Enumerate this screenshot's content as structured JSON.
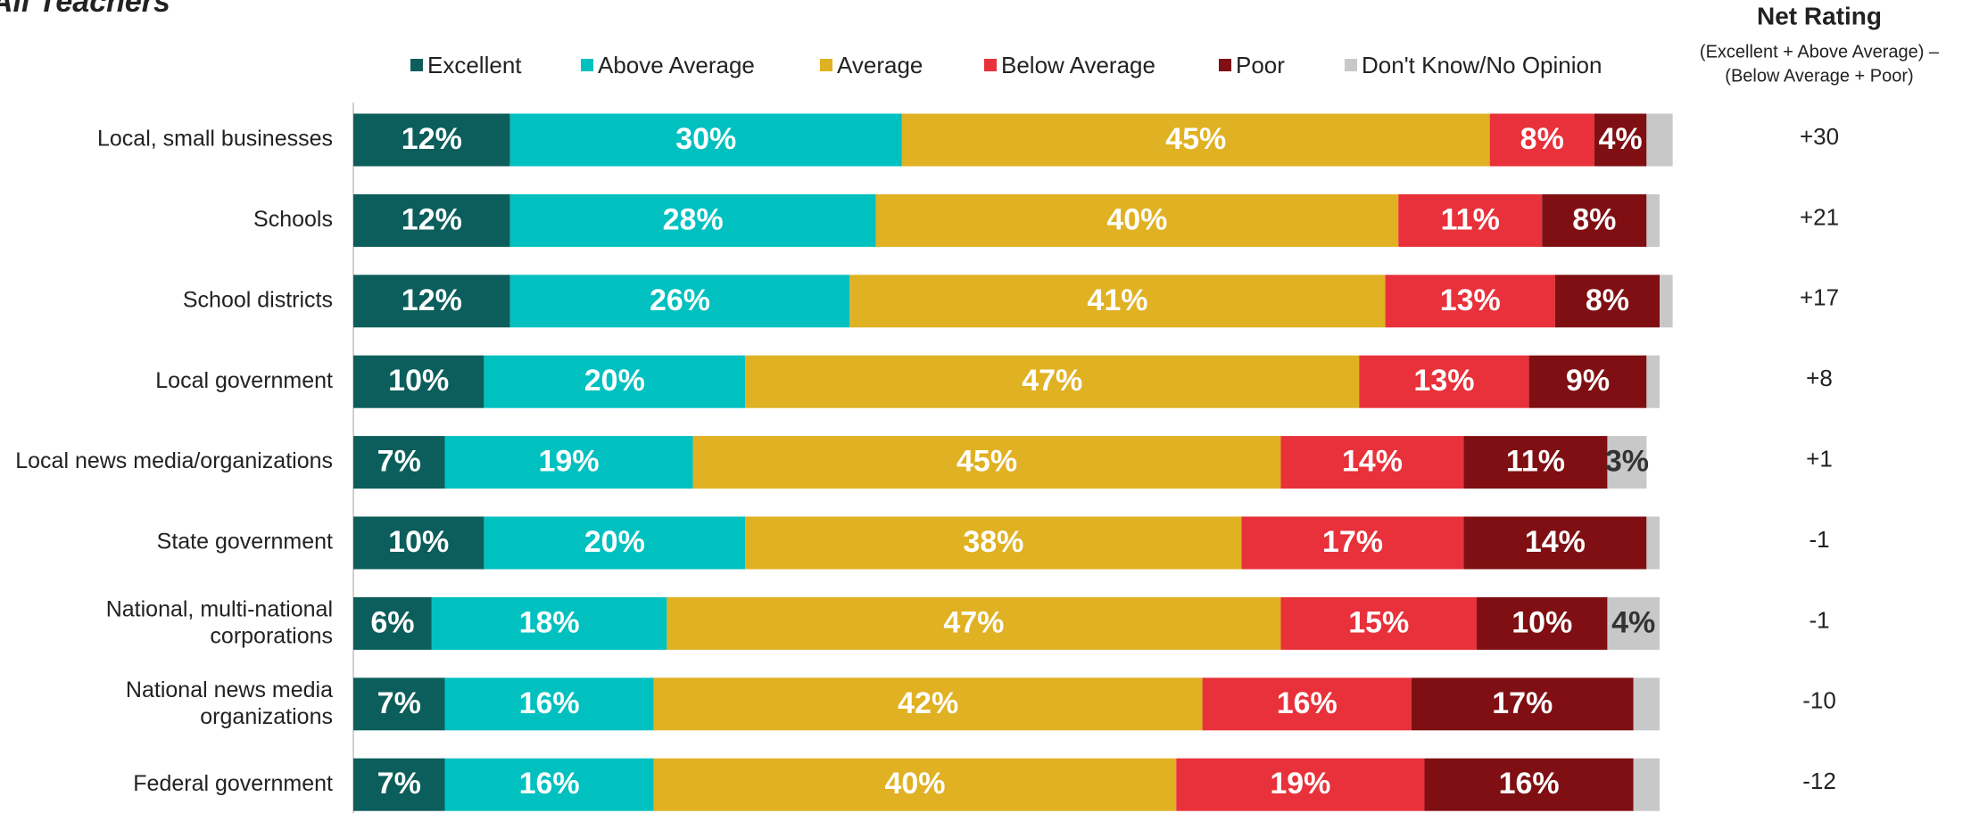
{
  "chart_data": {
    "type": "stacked_bar_horizontal",
    "title": "All Teachers",
    "net_title": "Net Rating",
    "net_subtitle": [
      "(Excellent + Above Average) –",
      "(Below Average + Poor)"
    ],
    "net_labels": [
      "+30",
      "+21",
      "+17",
      "+8",
      "+1",
      "-1",
      "-1",
      "-10",
      "-12"
    ],
    "categories": [
      "Local, small businesses",
      "Schools",
      "School districts",
      "Local government",
      "Local news media/organizations",
      "State government",
      "National, multi-national\ncorporations",
      "National news media\norganizations",
      "Federal government"
    ],
    "xlim": [
      0,
      100
    ],
    "series": [
      {
        "name": "Excellent",
        "color": "#0b5e5b",
        "values": [
          12,
          12,
          12,
          10,
          7,
          10,
          6,
          7,
          7
        ],
        "value_labels": [
          "12%",
          "12%",
          "12%",
          "10%",
          "7%",
          "10%",
          "6%",
          "7%",
          "7%"
        ]
      },
      {
        "name": "Above Average",
        "color": "#00c0c0",
        "values": [
          30,
          28,
          26,
          20,
          19,
          20,
          18,
          16,
          16
        ],
        "value_labels": [
          "30%",
          "28%",
          "26%",
          "20%",
          "19%",
          "20%",
          "18%",
          "16%",
          "16%"
        ]
      },
      {
        "name": "Average",
        "color": "#e0b122",
        "values": [
          45,
          40,
          41,
          47,
          45,
          38,
          47,
          42,
          40
        ],
        "value_labels": [
          "45%",
          "40%",
          "41%",
          "47%",
          "45%",
          "38%",
          "47%",
          "42%",
          "40%"
        ]
      },
      {
        "name": "Below Average",
        "color": "#e8313a",
        "values": [
          8,
          11,
          13,
          13,
          14,
          17,
          15,
          16,
          19
        ],
        "value_labels": [
          "8%",
          "11%",
          "13%",
          "13%",
          "14%",
          "17%",
          "15%",
          "16%",
          "19%"
        ]
      },
      {
        "name": "Poor",
        "color": "#7f0f12",
        "values": [
          4,
          8,
          8,
          9,
          11,
          14,
          10,
          17,
          16
        ],
        "value_labels": [
          "4%",
          "8%",
          "8%",
          "9%",
          "11%",
          "14%",
          "10%",
          "17%",
          "16%"
        ]
      },
      {
        "name": "Don't Know/No Opinion",
        "color": "#c8c8c8",
        "values": [
          2,
          1,
          1,
          1,
          3,
          1,
          4,
          2,
          2
        ],
        "value_labels": [
          null,
          null,
          null,
          null,
          "3%",
          null,
          "4%",
          null,
          null
        ]
      }
    ]
  }
}
